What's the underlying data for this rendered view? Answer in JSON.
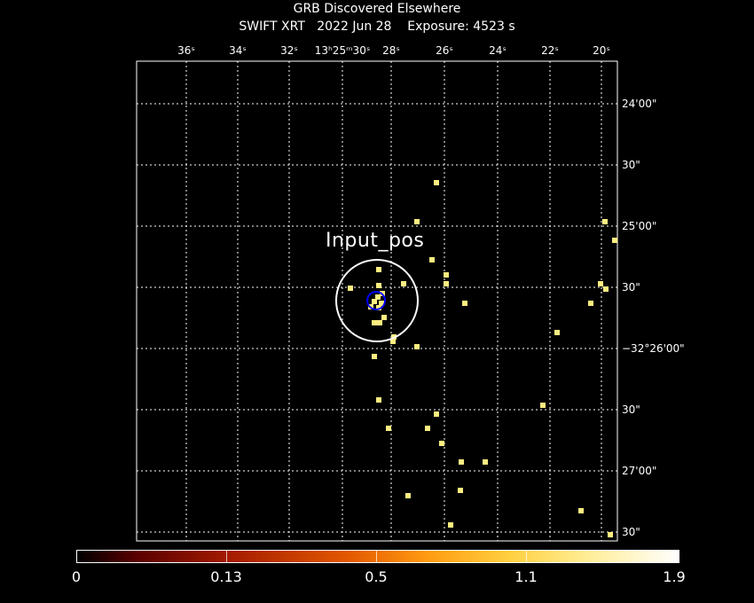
{
  "header": {
    "title": "GRB Discovered Elsewhere",
    "subtitle": "SWIFT XRT   2022 Jun 28    Exposure: 4523 s"
  },
  "image": {
    "ra_labels": [
      "36ˢ",
      "34ˢ",
      "32ˢ",
      "13ʰ25ᵐ30ˢ",
      "28ˢ",
      "26ˢ",
      "24ˢ",
      "22ˢ",
      "20ˢ"
    ],
    "dec_labels": [
      "24'00\"",
      "30\"",
      "25'00\"",
      "30\"",
      "−32°26'00\"",
      "30\"",
      "27'00\"",
      "30\""
    ],
    "source_label": "Input_pos",
    "colors": {
      "frame": "#ffffff",
      "grid": "#ffffff",
      "photon": "#ffee80",
      "input_circle": "#ffffff",
      "error_circle": "#0000ff"
    }
  },
  "colorbar": {
    "ticks": [
      "0",
      "0.13",
      "0.5",
      "1.1",
      "1.9"
    ]
  }
}
